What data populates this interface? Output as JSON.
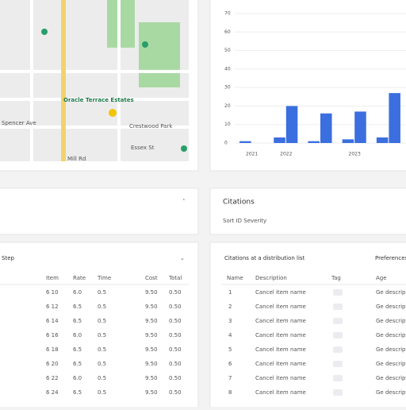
{
  "map": {
    "labels": [
      "Oracle Terrace Estates",
      "Spencer Ave",
      "Crestwood Park",
      "Essex St",
      "Mill Rd"
    ]
  },
  "chart": {
    "categories": [
      "2021",
      "2022",
      null,
      "2023",
      null
    ],
    "series": [
      {
        "color": "#3b6fe0",
        "values": [
          1,
          3,
          1,
          2,
          3
        ]
      },
      {
        "color": "#3b6fe0",
        "values": [
          null,
          20,
          16,
          17,
          27
        ]
      }
    ],
    "ylim": [
      0,
      70
    ],
    "yticks": [
      0,
      10,
      20,
      30,
      40,
      50,
      60,
      70
    ]
  },
  "card_right": {
    "title": "Citations",
    "sub": "Sort  ID  Severity"
  },
  "table_left": {
    "title": "Step",
    "header": [
      "Item",
      "Rate",
      "Time",
      "Cost",
      "Total"
    ],
    "rows": [
      [
        "6 10",
        "6.0",
        "0.5",
        "9.50",
        "0.50"
      ],
      [
        "6 12",
        "6.5",
        "0.5",
        "9.50",
        "0.50"
      ],
      [
        "6 14",
        "6.5",
        "0.5",
        "9.50",
        "0.50"
      ],
      [
        "6 16",
        "6.0",
        "0.5",
        "9.50",
        "0.50"
      ],
      [
        "6 18",
        "6.5",
        "0.5",
        "9.50",
        "0.50"
      ],
      [
        "6 20",
        "6.5",
        "0.5",
        "9.50",
        "0.50"
      ],
      [
        "6 22",
        "6.0",
        "0.5",
        "9.50",
        "0.50"
      ],
      [
        "6 24",
        "6.5",
        "0.5",
        "9.50",
        "0.50"
      ]
    ]
  },
  "table_right": {
    "title": "Citations at a distribution list",
    "title2": "Preferences",
    "header": [
      "Name",
      "Description",
      "Tag",
      "Age"
    ],
    "rows": [
      [
        "1",
        "Cancel item name",
        "Ge description"
      ],
      [
        "2",
        "Cancel item name",
        "Ge description"
      ],
      [
        "3",
        "Cancel item name",
        "Ge description"
      ],
      [
        "4",
        "Cancel item name",
        "Ge description"
      ],
      [
        "5",
        "Cancel item name",
        "Ge description"
      ],
      [
        "6",
        "Cancel item name",
        "Ge description"
      ],
      [
        "7",
        "Cancel item name",
        "Ge description"
      ],
      [
        "8",
        "Cancel item name",
        "Ge description"
      ]
    ]
  }
}
